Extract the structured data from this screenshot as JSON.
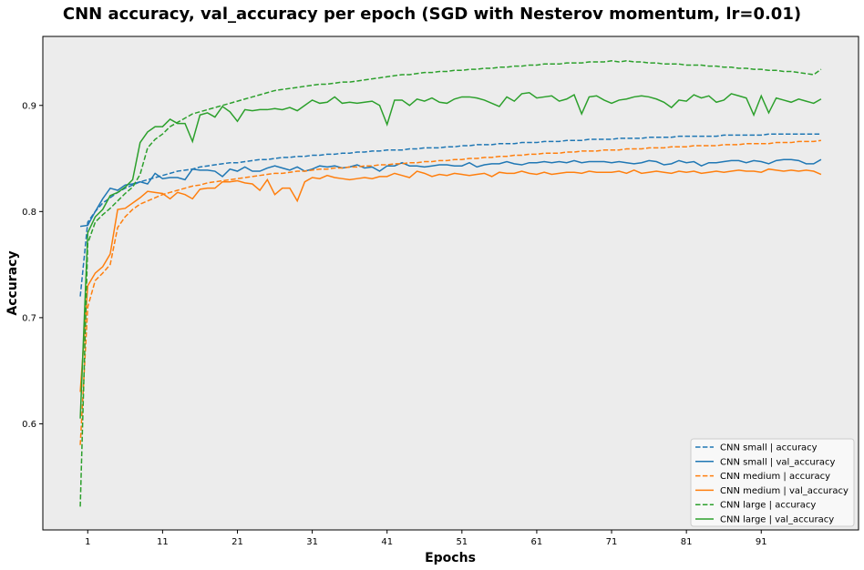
{
  "chart_data": {
    "type": "line",
    "title": "CNN accuracy, val_accuracy per epoch (SGD with Nesterov momentum, lr=0.01)",
    "xlabel": "Epochs",
    "ylabel": "Accuracy",
    "xlim": [
      -5,
      104
    ],
    "ylim": [
      0.5,
      0.965
    ],
    "xticks": [
      1,
      11,
      21,
      31,
      41,
      51,
      61,
      71,
      81,
      91
    ],
    "yticks": [
      0.6,
      0.7,
      0.8,
      0.9
    ],
    "ytick_labels": [
      "0.6",
      "0.7",
      "0.8",
      "0.9"
    ],
    "grid": false,
    "background": "#ececec",
    "legend_position": "bottom-right",
    "x": [
      0,
      1,
      2,
      3,
      4,
      5,
      6,
      7,
      8,
      9,
      10,
      11,
      12,
      13,
      14,
      15,
      16,
      17,
      18,
      19,
      20,
      21,
      22,
      23,
      24,
      25,
      26,
      27,
      28,
      29,
      30,
      31,
      32,
      33,
      34,
      35,
      36,
      37,
      38,
      39,
      40,
      41,
      42,
      43,
      44,
      45,
      46,
      47,
      48,
      49,
      50,
      51,
      52,
      53,
      54,
      55,
      56,
      57,
      58,
      59,
      60,
      61,
      62,
      63,
      64,
      65,
      66,
      67,
      68,
      69,
      70,
      71,
      72,
      73,
      74,
      75,
      76,
      77,
      78,
      79,
      80,
      81,
      82,
      83,
      84,
      85,
      86,
      87,
      88,
      89,
      90,
      91,
      92,
      93,
      94,
      95,
      96,
      97,
      98,
      99
    ],
    "series": [
      {
        "name": "CNN small | accuracy",
        "color": "#1f77b4",
        "dash": "dashed",
        "values": [
          0.72,
          0.79,
          0.8,
          0.808,
          0.813,
          0.818,
          0.822,
          0.825,
          0.828,
          0.83,
          0.832,
          0.834,
          0.836,
          0.838,
          0.839,
          0.84,
          0.842,
          0.843,
          0.844,
          0.845,
          0.846,
          0.846,
          0.847,
          0.848,
          0.849,
          0.849,
          0.85,
          0.851,
          0.851,
          0.852,
          0.852,
          0.853,
          0.853,
          0.854,
          0.854,
          0.855,
          0.855,
          0.856,
          0.856,
          0.857,
          0.857,
          0.858,
          0.858,
          0.858,
          0.859,
          0.859,
          0.86,
          0.86,
          0.86,
          0.861,
          0.861,
          0.862,
          0.862,
          0.863,
          0.863,
          0.863,
          0.864,
          0.864,
          0.864,
          0.865,
          0.865,
          0.865,
          0.866,
          0.866,
          0.866,
          0.867,
          0.867,
          0.867,
          0.868,
          0.868,
          0.868,
          0.868,
          0.869,
          0.869,
          0.869,
          0.869,
          0.87,
          0.87,
          0.87,
          0.87,
          0.871,
          0.871,
          0.871,
          0.871,
          0.871,
          0.871,
          0.872,
          0.872,
          0.872,
          0.872,
          0.872,
          0.872,
          0.873,
          0.873,
          0.873,
          0.873,
          0.873,
          0.873,
          0.873,
          0.873
        ]
      },
      {
        "name": "CNN small | val_accuracy",
        "color": "#1f77b4",
        "dash": "solid",
        "values": [
          0.786,
          0.787,
          0.8,
          0.812,
          0.822,
          0.82,
          0.825,
          0.826,
          0.828,
          0.826,
          0.836,
          0.831,
          0.832,
          0.832,
          0.83,
          0.84,
          0.839,
          0.839,
          0.838,
          0.833,
          0.84,
          0.838,
          0.842,
          0.838,
          0.838,
          0.841,
          0.843,
          0.841,
          0.839,
          0.842,
          0.838,
          0.84,
          0.843,
          0.842,
          0.843,
          0.841,
          0.842,
          0.844,
          0.841,
          0.842,
          0.838,
          0.843,
          0.843,
          0.846,
          0.843,
          0.843,
          0.842,
          0.843,
          0.844,
          0.844,
          0.843,
          0.843,
          0.846,
          0.842,
          0.844,
          0.845,
          0.845,
          0.847,
          0.845,
          0.844,
          0.846,
          0.846,
          0.847,
          0.846,
          0.847,
          0.846,
          0.848,
          0.846,
          0.847,
          0.847,
          0.847,
          0.846,
          0.847,
          0.846,
          0.845,
          0.846,
          0.848,
          0.847,
          0.844,
          0.845,
          0.848,
          0.846,
          0.847,
          0.843,
          0.846,
          0.846,
          0.847,
          0.848,
          0.848,
          0.846,
          0.848,
          0.847,
          0.845,
          0.848,
          0.849,
          0.849,
          0.848,
          0.845,
          0.845,
          0.849
        ]
      },
      {
        "name": "CNN medium | accuracy",
        "color": "#ff7f0e",
        "dash": "dashed",
        "values": [
          0.58,
          0.71,
          0.735,
          0.742,
          0.75,
          0.785,
          0.795,
          0.802,
          0.807,
          0.81,
          0.813,
          0.816,
          0.818,
          0.82,
          0.822,
          0.824,
          0.825,
          0.827,
          0.828,
          0.829,
          0.83,
          0.831,
          0.832,
          0.833,
          0.834,
          0.835,
          0.836,
          0.836,
          0.837,
          0.838,
          0.838,
          0.839,
          0.84,
          0.84,
          0.841,
          0.841,
          0.842,
          0.842,
          0.843,
          0.843,
          0.844,
          0.844,
          0.845,
          0.845,
          0.846,
          0.846,
          0.847,
          0.847,
          0.848,
          0.848,
          0.849,
          0.849,
          0.85,
          0.85,
          0.851,
          0.851,
          0.852,
          0.852,
          0.853,
          0.853,
          0.854,
          0.854,
          0.855,
          0.855,
          0.855,
          0.856,
          0.856,
          0.857,
          0.857,
          0.857,
          0.858,
          0.858,
          0.858,
          0.859,
          0.859,
          0.859,
          0.86,
          0.86,
          0.86,
          0.861,
          0.861,
          0.861,
          0.862,
          0.862,
          0.862,
          0.862,
          0.863,
          0.863,
          0.863,
          0.864,
          0.864,
          0.864,
          0.864,
          0.865,
          0.865,
          0.865,
          0.866,
          0.866,
          0.866,
          0.867
        ]
      },
      {
        "name": "CNN medium | val_accuracy",
        "color": "#ff7f0e",
        "dash": "solid",
        "values": [
          0.63,
          0.73,
          0.742,
          0.748,
          0.76,
          0.802,
          0.803,
          0.808,
          0.813,
          0.819,
          0.818,
          0.817,
          0.812,
          0.818,
          0.816,
          0.812,
          0.821,
          0.822,
          0.822,
          0.828,
          0.828,
          0.829,
          0.827,
          0.826,
          0.82,
          0.83,
          0.816,
          0.822,
          0.822,
          0.81,
          0.828,
          0.832,
          0.831,
          0.834,
          0.832,
          0.831,
          0.83,
          0.831,
          0.832,
          0.831,
          0.833,
          0.833,
          0.836,
          0.834,
          0.832,
          0.838,
          0.836,
          0.833,
          0.835,
          0.834,
          0.836,
          0.835,
          0.834,
          0.835,
          0.836,
          0.833,
          0.837,
          0.836,
          0.836,
          0.838,
          0.836,
          0.835,
          0.837,
          0.835,
          0.836,
          0.837,
          0.837,
          0.836,
          0.838,
          0.837,
          0.837,
          0.837,
          0.838,
          0.836,
          0.839,
          0.836,
          0.837,
          0.838,
          0.837,
          0.836,
          0.838,
          0.837,
          0.838,
          0.836,
          0.837,
          0.838,
          0.837,
          0.838,
          0.839,
          0.838,
          0.838,
          0.837,
          0.84,
          0.839,
          0.838,
          0.839,
          0.838,
          0.839,
          0.838,
          0.835
        ]
      },
      {
        "name": "CNN large | accuracy",
        "color": "#2ca02c",
        "dash": "dashed",
        "values": [
          0.522,
          0.77,
          0.79,
          0.797,
          0.803,
          0.81,
          0.817,
          0.823,
          0.835,
          0.86,
          0.868,
          0.873,
          0.88,
          0.884,
          0.888,
          0.892,
          0.894,
          0.896,
          0.898,
          0.9,
          0.902,
          0.904,
          0.906,
          0.908,
          0.91,
          0.912,
          0.914,
          0.915,
          0.916,
          0.917,
          0.918,
          0.919,
          0.92,
          0.92,
          0.921,
          0.922,
          0.922,
          0.923,
          0.924,
          0.925,
          0.926,
          0.927,
          0.928,
          0.929,
          0.929,
          0.93,
          0.931,
          0.931,
          0.932,
          0.932,
          0.933,
          0.933,
          0.934,
          0.934,
          0.935,
          0.935,
          0.936,
          0.936,
          0.937,
          0.937,
          0.938,
          0.938,
          0.939,
          0.939,
          0.939,
          0.94,
          0.94,
          0.94,
          0.941,
          0.941,
          0.941,
          0.942,
          0.941,
          0.942,
          0.941,
          0.941,
          0.94,
          0.94,
          0.939,
          0.939,
          0.939,
          0.938,
          0.938,
          0.938,
          0.937,
          0.937,
          0.936,
          0.936,
          0.935,
          0.935,
          0.934,
          0.934,
          0.933,
          0.933,
          0.932,
          0.932,
          0.931,
          0.93,
          0.929,
          0.934
        ]
      },
      {
        "name": "CNN large | val_accuracy",
        "color": "#2ca02c",
        "dash": "solid",
        "values": [
          0.605,
          0.78,
          0.795,
          0.802,
          0.815,
          0.818,
          0.823,
          0.83,
          0.865,
          0.875,
          0.88,
          0.88,
          0.887,
          0.883,
          0.883,
          0.866,
          0.891,
          0.893,
          0.889,
          0.899,
          0.894,
          0.885,
          0.896,
          0.895,
          0.896,
          0.896,
          0.897,
          0.896,
          0.898,
          0.895,
          0.9,
          0.905,
          0.902,
          0.903,
          0.908,
          0.902,
          0.903,
          0.902,
          0.903,
          0.904,
          0.9,
          0.882,
          0.905,
          0.905,
          0.9,
          0.906,
          0.904,
          0.907,
          0.903,
          0.902,
          0.906,
          0.908,
          0.908,
          0.907,
          0.905,
          0.902,
          0.899,
          0.908,
          0.904,
          0.911,
          0.912,
          0.907,
          0.908,
          0.909,
          0.904,
          0.906,
          0.91,
          0.892,
          0.908,
          0.909,
          0.905,
          0.902,
          0.905,
          0.906,
          0.908,
          0.909,
          0.908,
          0.906,
          0.903,
          0.898,
          0.905,
          0.904,
          0.91,
          0.907,
          0.909,
          0.903,
          0.905,
          0.911,
          0.909,
          0.907,
          0.891,
          0.909,
          0.893,
          0.907,
          0.905,
          0.903,
          0.906,
          0.904,
          0.902,
          0.906
        ]
      }
    ]
  }
}
